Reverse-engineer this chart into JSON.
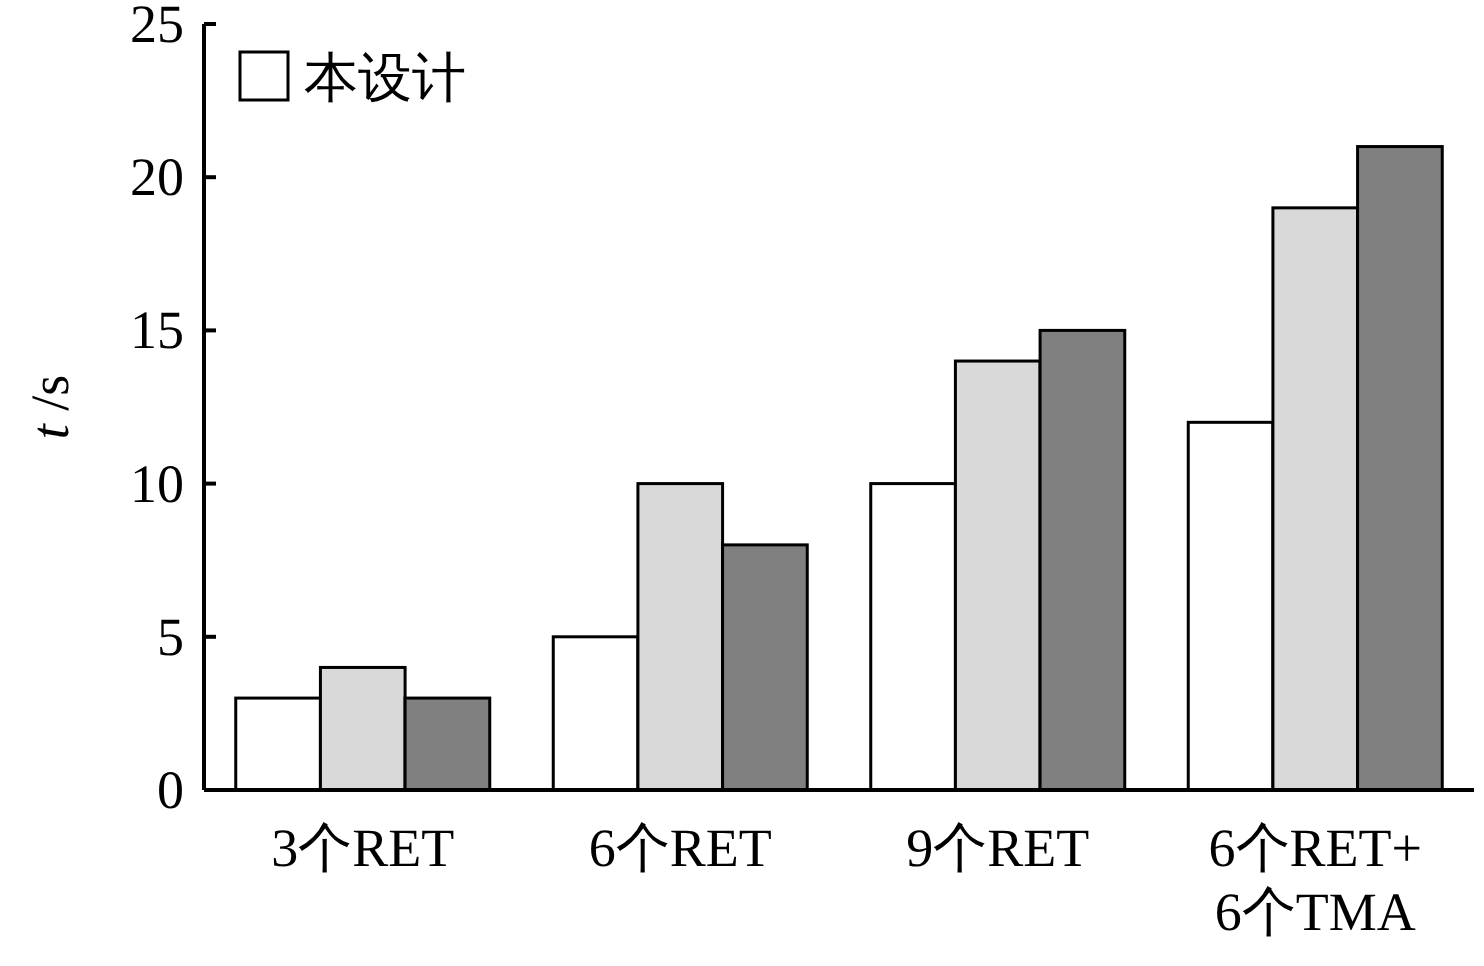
{
  "chart_data": {
    "type": "bar",
    "ylabel": "*t* /s",
    "categories": [
      "3个RET",
      "6个RET",
      "9个RET",
      "6个RET+ 6个TMA"
    ],
    "series": [
      {
        "name": "本设计",
        "color": "#ffffff",
        "values": [
          3,
          5,
          10,
          12
        ]
      },
      {
        "color": "#d9d9d9",
        "values": [
          4,
          10,
          14,
          19
        ]
      },
      {
        "color": "#808080",
        "values": [
          3,
          8,
          15,
          21
        ]
      }
    ],
    "ylim": [
      0,
      25
    ],
    "yticks": [
      0,
      5,
      10,
      15,
      20,
      25
    ],
    "legend": "top left"
  }
}
